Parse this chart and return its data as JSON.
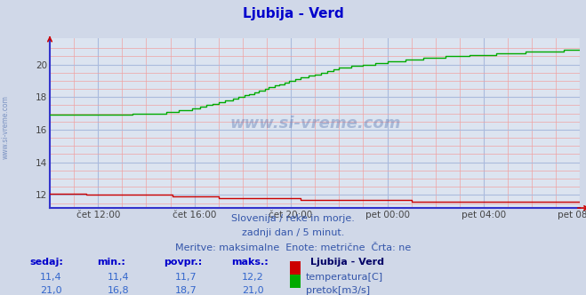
{
  "title": "Ljubija - Verd",
  "title_color": "#0000cc",
  "bg_color": "#d0d8e8",
  "plot_bg_color": "#dce4f0",
  "grid_color_major": "#aabbdd",
  "grid_color_minor": "#f0a0a0",
  "xlim": [
    0,
    22
  ],
  "ylim": [
    11.2,
    21.6
  ],
  "yticks": [
    12,
    14,
    16,
    18,
    20
  ],
  "xtick_labels": [
    "čet 12:00",
    "čet 16:00",
    "čet 20:00",
    "pet 00:00",
    "pet 04:00",
    "pet 08:00"
  ],
  "xtick_positions": [
    2,
    6,
    10,
    14,
    18,
    22
  ],
  "temp_color": "#cc0000",
  "flow_color": "#00aa00",
  "spine_color": "#3333cc",
  "watermark_text": "www.si-vreme.com",
  "watermark_color": "#4466aa",
  "subtitle1": "Slovenija / reke in morje.",
  "subtitle2": "zadnji dan / 5 minut.",
  "subtitle3": "Meritve: maksimalne  Enote: metrične  Črta: ne",
  "subtitle_color": "#3355aa",
  "legend_title": "Ljubija - Verd",
  "legend_title_color": "#000066",
  "legend_color": "#3355aa",
  "table_header": [
    "sedaj:",
    "min.:",
    "povpr.:",
    "maks.:"
  ],
  "table_header_color": "#0000cc",
  "temp_row": [
    "11,4",
    "11,4",
    "11,7",
    "12,2"
  ],
  "flow_row": [
    "21,0",
    "16,8",
    "18,7",
    "21,0"
  ],
  "table_data_color": "#3366cc"
}
